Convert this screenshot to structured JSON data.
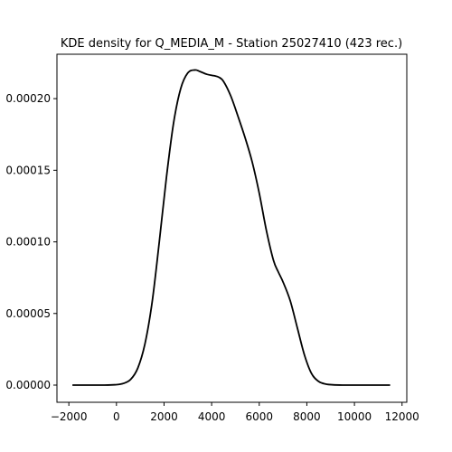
{
  "chart_data": {
    "type": "line",
    "title": "KDE density for Q_MEDIA_M - Station 25027410 (423 rec.)",
    "xlabel": "",
    "ylabel": "",
    "xlim": [
      -2500,
      12200
    ],
    "ylim": [
      -1.2e-05,
      0.000231
    ],
    "x_ticks": [
      -2000,
      0,
      2000,
      4000,
      6000,
      8000,
      10000,
      12000
    ],
    "x_tick_labels": [
      "−2000",
      "0",
      "2000",
      "4000",
      "6000",
      "8000",
      "10000",
      "12000"
    ],
    "y_ticks": [
      0,
      5e-05,
      0.0001,
      0.00015,
      0.0002
    ],
    "y_tick_labels": [
      "0.00000",
      "0.00005",
      "0.00010",
      "0.00015",
      "0.00020"
    ],
    "grid": false,
    "line_color": "#000000",
    "series": [
      {
        "x": [
          -1850,
          -500,
          0,
          300,
          600,
          900,
          1200,
          1500,
          1800,
          2100,
          2400,
          2700,
          3000,
          3300,
          3500,
          3800,
          4100,
          4300,
          4500,
          4800,
          5100,
          5400,
          5700,
          6000,
          6300,
          6600,
          6800,
          7000,
          7300,
          7600,
          7900,
          8200,
          8500,
          8800,
          9100,
          9500,
          10000,
          10500,
          11500
        ],
        "y": [
          0,
          0,
          3e-07,
          1.2e-06,
          4e-06,
          1.2e-05,
          2.9e-05,
          5.8e-05,
          0.0001,
          0.000145,
          0.000183,
          0.000207,
          0.000218,
          0.00022,
          0.000219,
          0.000217,
          0.000216,
          0.000215,
          0.000212,
          0.000202,
          0.000188,
          0.000173,
          0.000156,
          0.000134,
          0.000108,
          8.7e-05,
          7.9e-05,
          7.2e-05,
          5.9e-05,
          4e-05,
          2.1e-05,
          8e-06,
          2.5e-06,
          7e-07,
          2e-07,
          0,
          0,
          0,
          0
        ]
      }
    ]
  }
}
